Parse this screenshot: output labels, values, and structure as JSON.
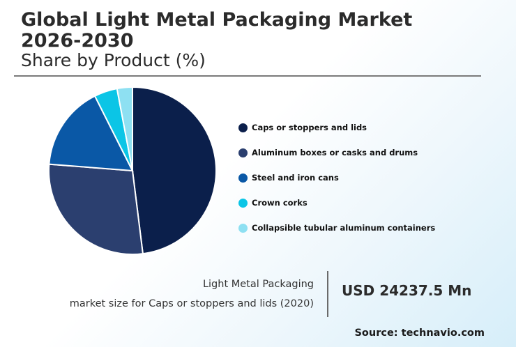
{
  "header": {
    "title": "Global Light Metal Packaging Market 2026-2030",
    "subtitle": "Share by Product (%)"
  },
  "chart_data": {
    "type": "pie",
    "title": "Share by Product (%)",
    "categories": [
      "Caps or stoppers and lids",
      "Aluminum boxes or casks and drums",
      "Steel and iron cans",
      "Crown corks",
      "Collapsible tubular aluminum containers"
    ],
    "values": [
      48.5,
      28.5,
      16.5,
      4.5,
      3.0
    ],
    "colors": [
      "#0b1f4b",
      "#2b3f6f",
      "#0a58a6",
      "#0bc5e6",
      "#8ee0f2"
    ],
    "legend_position": "right"
  },
  "metric": {
    "label_line1": "Light Metal Packaging",
    "label_line2": "market size for Caps or stoppers and lids (2020)",
    "value": "USD 24237.5 Mn"
  },
  "footer": {
    "source": "Source: technavio.com"
  }
}
